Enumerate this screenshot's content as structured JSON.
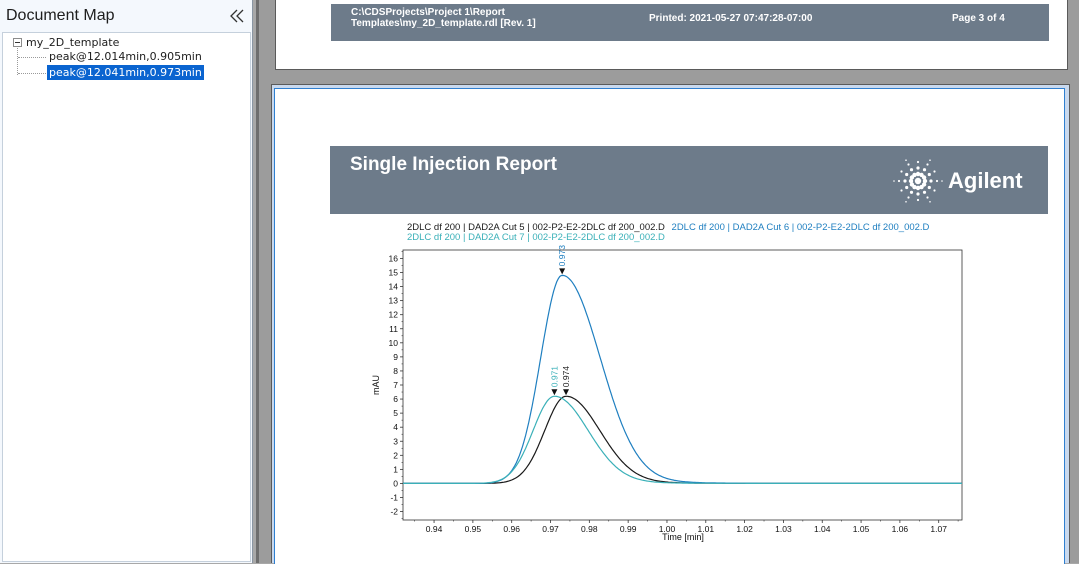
{
  "document_map": {
    "title": "Document Map",
    "collapse_icon": "double-chevron-left-icon",
    "tree": {
      "root": "my_2D_template",
      "children": [
        {
          "label": "peak@12.014min,0.905min",
          "selected": false
        },
        {
          "label": "peak@12.041min,0.973min",
          "selected": true
        }
      ]
    }
  },
  "previous_page_footer": {
    "path_line1": "C:\\CDSProjects\\Project 1\\Report",
    "path_line2": "Templates\\my_2D_template.rdl [Rev. 1]",
    "printed": "Printed:  2021-05-27 07:47:28-07:00",
    "page": "Page 3 of 4"
  },
  "report": {
    "title": "Single Injection Report",
    "brand": "Agilent",
    "legend": [
      {
        "text": "2DLC df 200 | DAD2A Cut 5 | 002-P2-E2-2DLC df 200_002.D",
        "color": "#1a1a1a"
      },
      {
        "text": "2DLC df 200 | DAD2A Cut 6 | 002-P2-E2-2DLC df 200_002.D",
        "color": "#1f7fc0"
      },
      {
        "text": "2DLC df 200 | DAD2A Cut 7 | 002-P2-E2-2DLC df 200_002.D",
        "color": "#3ab0b8"
      }
    ]
  },
  "chart_data": {
    "type": "line",
    "xlabel": "Time [min]",
    "ylabel": "mAU",
    "xlim": [
      0.932,
      1.076
    ],
    "ylim": [
      -2.6,
      16.6
    ],
    "xticks": [
      "0.94",
      "0.95",
      "0.96",
      "0.97",
      "0.98",
      "0.99",
      "1.00",
      "1.01",
      "1.02",
      "1.03",
      "1.04",
      "1.05",
      "1.06",
      "1.07"
    ],
    "yticks": [
      "-2",
      "-1",
      "0",
      "1",
      "2",
      "3",
      "4",
      "5",
      "6",
      "7",
      "8",
      "9",
      "10",
      "11",
      "12",
      "13",
      "14",
      "15",
      "16"
    ],
    "series": [
      {
        "color": "#1a1a1a",
        "peak_x": 0.974,
        "peak_y": 6.2,
        "width_left": 0.0055,
        "width_right": 0.0085,
        "tail": 0.0,
        "label": "0.974"
      },
      {
        "color": "#1f7fc0",
        "peak_x": 0.973,
        "peak_y": 14.8,
        "width_left": 0.0055,
        "width_right": 0.0095,
        "tail": 0.0,
        "label": "0.973"
      },
      {
        "color": "#3ab0b8",
        "peak_x": 0.971,
        "peak_y": 6.2,
        "width_left": 0.0055,
        "width_right": 0.0085,
        "tail": 0.0,
        "label": "0.971"
      }
    ]
  }
}
